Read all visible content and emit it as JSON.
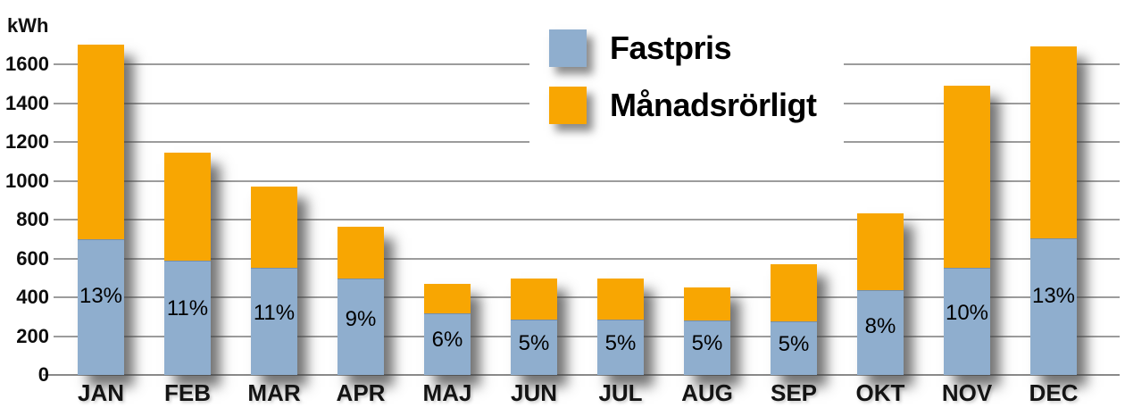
{
  "chart_data": {
    "type": "bar",
    "stacked": true,
    "title": "",
    "ylabel": "kWh",
    "xlabel": "",
    "ylim": [
      0,
      1700
    ],
    "ytick_step": 200,
    "yticks": [
      0,
      200,
      400,
      600,
      800,
      1000,
      1200,
      1400,
      1600
    ],
    "grid": true,
    "legend_position": "top-center",
    "categories": [
      "JAN",
      "FEB",
      "MAR",
      "APR",
      "MAJ",
      "JUN",
      "JUL",
      "AUG",
      "SEP",
      "OKT",
      "NOV",
      "DEC"
    ],
    "series": [
      {
        "name": "Fastpris",
        "color": "#8FAECE",
        "values": [
          700,
          590,
          550,
          495,
          315,
          285,
          285,
          280,
          275,
          435,
          550,
          705
        ]
      },
      {
        "name": "Månadsrörligt",
        "color": "#F8A602",
        "values": [
          1000,
          555,
          420,
          270,
          155,
          210,
          210,
          170,
          295,
          395,
          940,
          985
        ]
      }
    ],
    "totals": [
      1700,
      1145,
      970,
      765,
      470,
      495,
      495,
      450,
      570,
      830,
      1490,
      1690
    ],
    "bar_labels": [
      "13%",
      "11%",
      "11%",
      "9%",
      "6%",
      "5%",
      "5%",
      "5%",
      "5%",
      "8%",
      "10%",
      "13%"
    ]
  },
  "colors": {
    "fastpris": "#8FAECE",
    "manadsrorligt": "#F8A602",
    "gridline": "#9c9c9c",
    "text": "#000000",
    "background": "#ffffff"
  }
}
